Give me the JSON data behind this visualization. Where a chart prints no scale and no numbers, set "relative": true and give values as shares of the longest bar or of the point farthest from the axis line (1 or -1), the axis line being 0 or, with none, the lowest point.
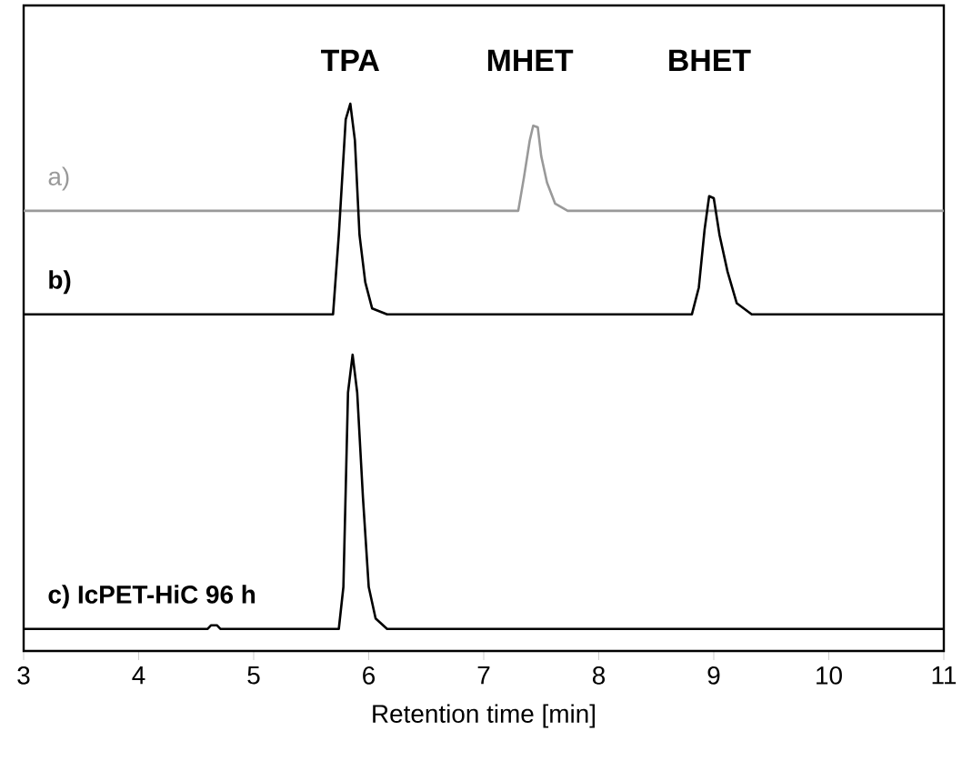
{
  "chart_data": {
    "type": "line",
    "relative": true,
    "xlabel": "Retention time [min]",
    "xlim": [
      3,
      11
    ],
    "xticks": [
      3,
      4,
      5,
      6,
      7,
      8,
      9,
      10,
      11
    ],
    "grid": false,
    "legend": false,
    "marker": "none",
    "line_style": "solid",
    "annotations": [
      "TPA",
      "MHET",
      "BHET"
    ],
    "series": [
      {
        "name": "a)",
        "color": "#999999",
        "x": [
          3,
          7.3,
          7.35,
          7.4,
          7.43,
          7.47,
          7.5,
          7.55,
          7.62,
          7.73,
          11
        ],
        "values": [
          0.796,
          0.796,
          0.86,
          0.93,
          0.958,
          0.955,
          0.9,
          0.85,
          0.81,
          0.796,
          0.796
        ]
      },
      {
        "name": "b)",
        "color": "#000000",
        "x": [
          3,
          5.69,
          5.74,
          5.8,
          5.84,
          5.88,
          5.92,
          5.97,
          6.03,
          6.16,
          8.81,
          8.87,
          8.92,
          8.96,
          9.0,
          9.05,
          9.12,
          9.2,
          9.33,
          11
        ],
        "values": [
          0.599,
          0.599,
          0.75,
          0.97,
          1.0,
          0.93,
          0.75,
          0.66,
          0.61,
          0.599,
          0.599,
          0.65,
          0.76,
          0.824,
          0.82,
          0.75,
          0.68,
          0.62,
          0.599,
          0.599
        ]
      },
      {
        "name": "c) IcPET-HiC 96 h",
        "color": "#000000",
        "x": [
          3,
          4.6,
          4.63,
          4.68,
          4.71,
          5.74,
          5.78,
          5.82,
          5.86,
          5.9,
          5.95,
          6.0,
          6.06,
          6.16,
          11
        ],
        "values": [
          0,
          0,
          0.007,
          0.007,
          0,
          0,
          0.08,
          0.45,
          0.522,
          0.45,
          0.25,
          0.08,
          0.02,
          0,
          0
        ]
      }
    ]
  }
}
